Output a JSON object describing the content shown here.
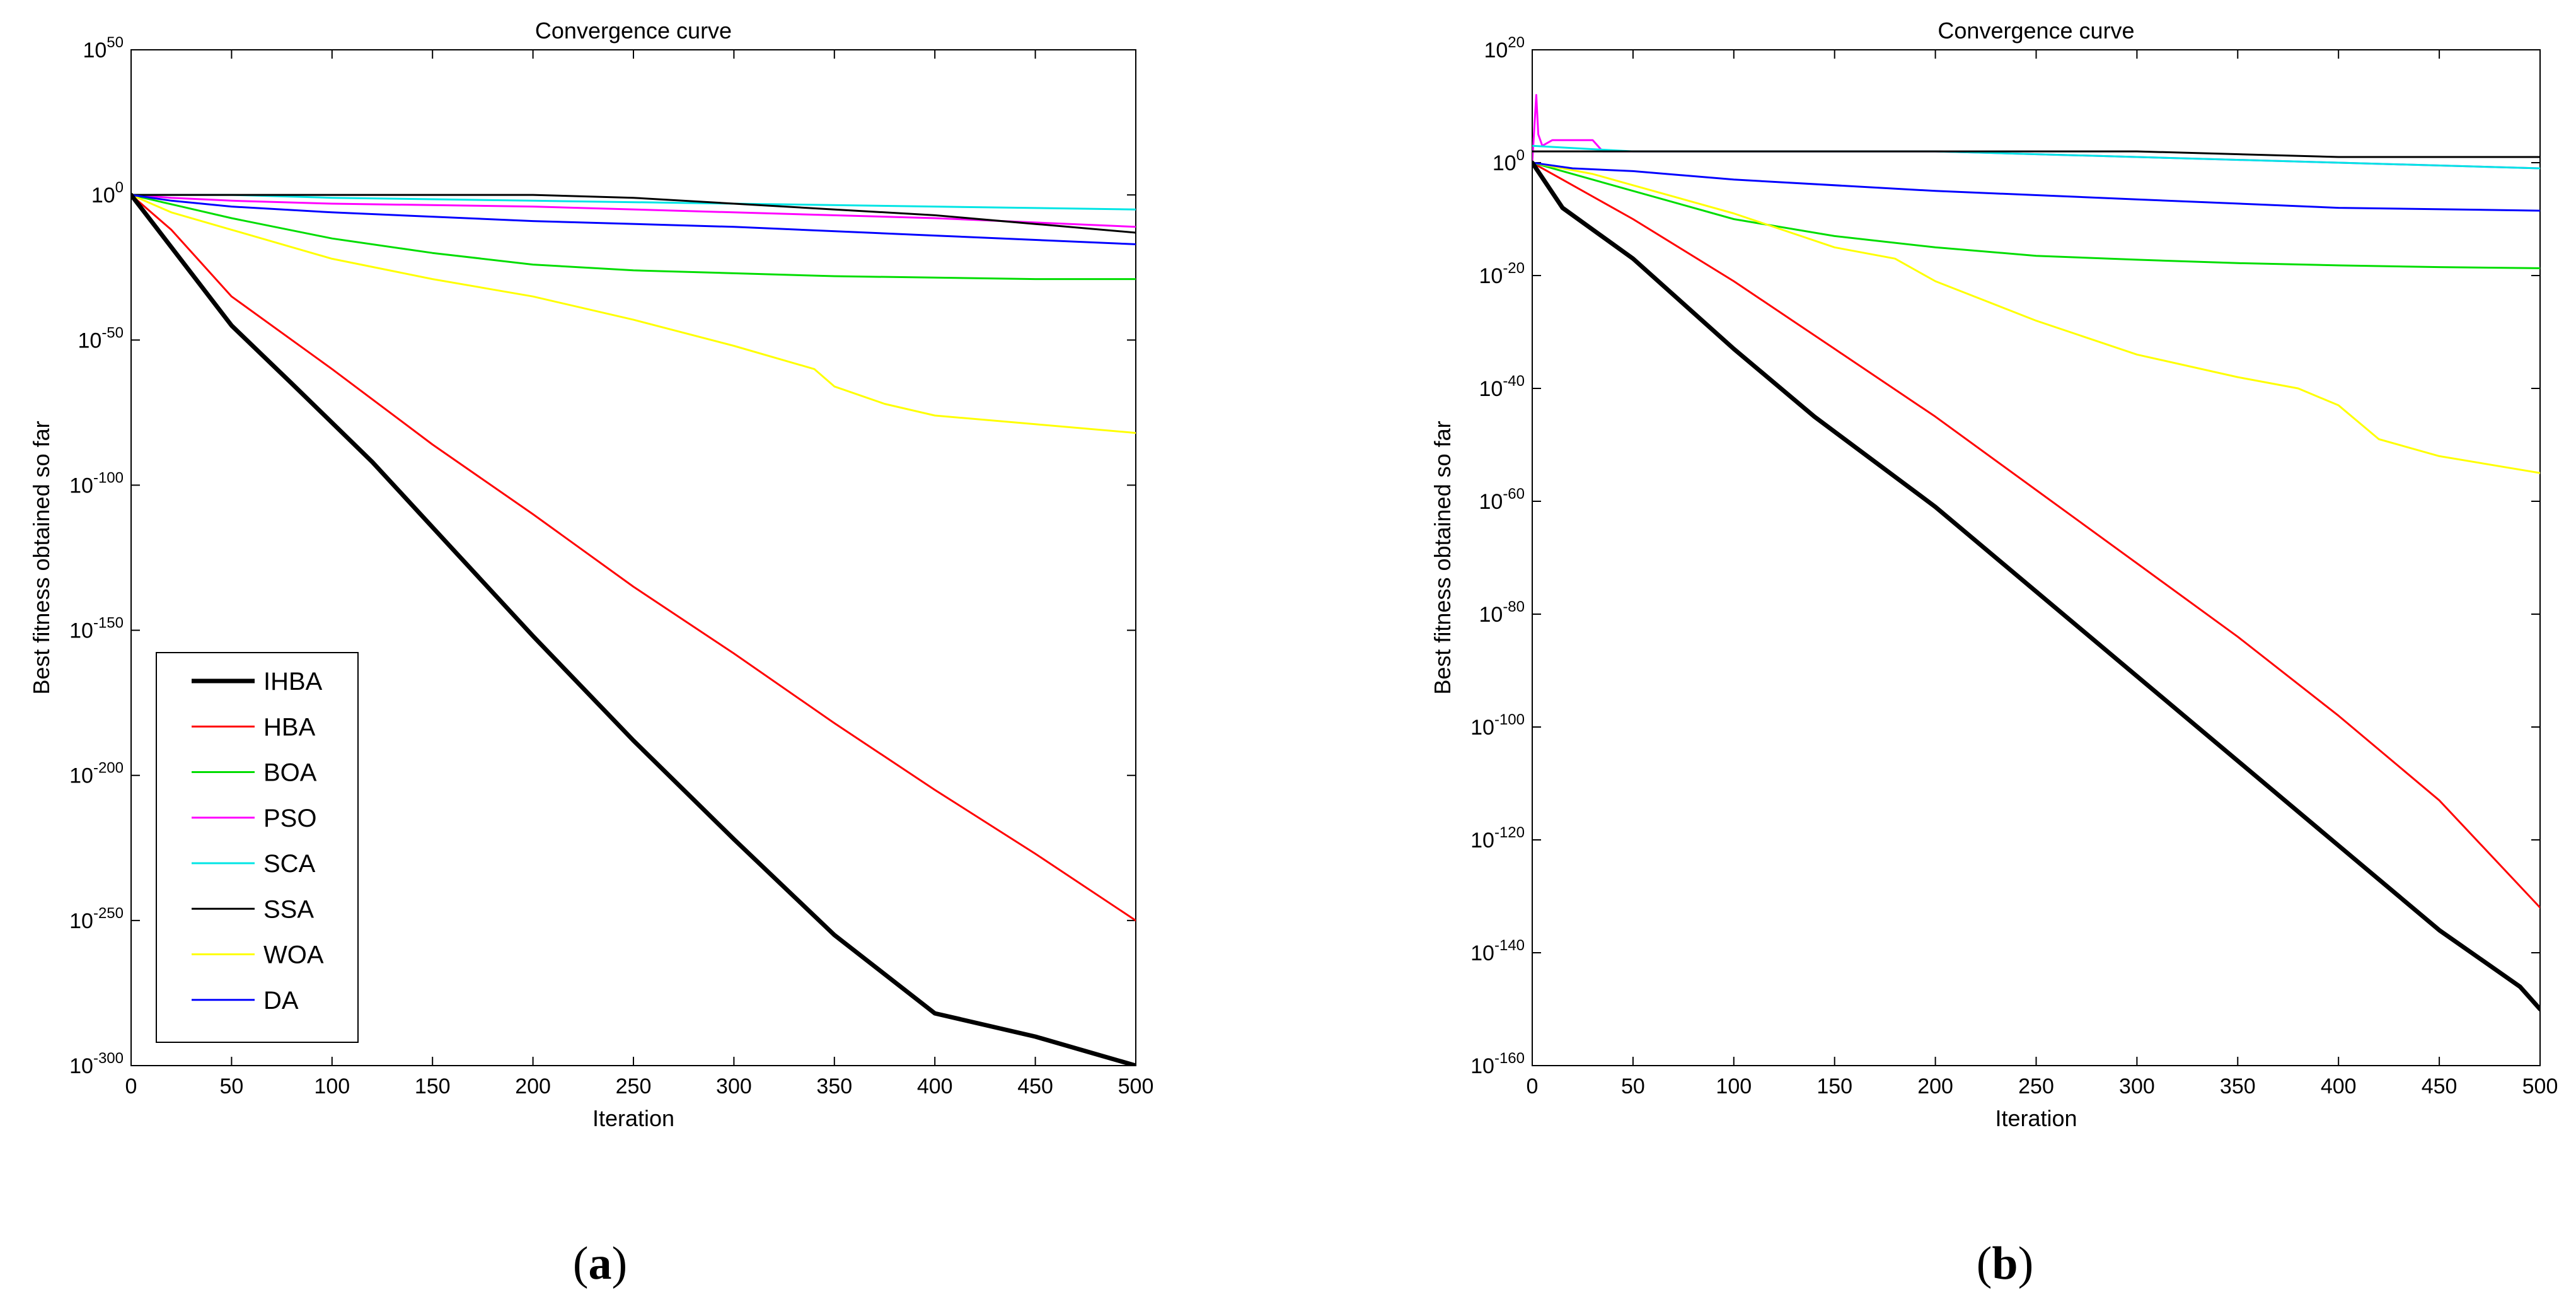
{
  "chart_data": [
    {
      "type": "line",
      "panel_label": "a",
      "title": "Convergence curve",
      "xlabel": "Iteration",
      "ylabel": "Best fitness obtained so far",
      "xlim": [
        0,
        500
      ],
      "xticks": [
        0,
        50,
        100,
        150,
        200,
        250,
        300,
        350,
        400,
        450,
        500
      ],
      "yscale": "log",
      "ylim_exp": [
        -300,
        50
      ],
      "ytick_exps": [
        50,
        0,
        -50,
        -100,
        -150,
        -200,
        -250,
        -300
      ],
      "ytick_labels": [
        "10^50",
        "10^0",
        "10^-50",
        "10^-100",
        "10^-150",
        "10^-200",
        "10^-250",
        "10^-300"
      ],
      "legend_position": "lower-left",
      "series": [
        {
          "name": "IHBA",
          "color": "#000000",
          "width": 7,
          "x": [
            0,
            20,
            50,
            80,
            120,
            160,
            200,
            250,
            300,
            350,
            400,
            450,
            480,
            500
          ],
          "log10_y": [
            0,
            -18,
            -45,
            -65,
            -92,
            -122,
            -152,
            -188,
            -222,
            -255,
            -282,
            -290,
            -296,
            -300
          ]
        },
        {
          "name": "HBA",
          "color": "#ff0000",
          "width": 3,
          "x": [
            0,
            20,
            50,
            100,
            150,
            200,
            250,
            300,
            350,
            400,
            450,
            500
          ],
          "log10_y": [
            0,
            -12,
            -35,
            -60,
            -86,
            -110,
            -135,
            -158,
            -182,
            -205,
            -227,
            -250
          ]
        },
        {
          "name": "BOA",
          "color": "#00dd00",
          "width": 3,
          "x": [
            0,
            25,
            50,
            100,
            150,
            200,
            250,
            300,
            350,
            400,
            450,
            500
          ],
          "log10_y": [
            0,
            -4,
            -8,
            -15,
            -20,
            -24,
            -26,
            -27,
            -28,
            -28.5,
            -29,
            -29
          ]
        },
        {
          "name": "PSO",
          "color": "#ff00ff",
          "width": 3,
          "x": [
            0,
            20,
            50,
            100,
            200,
            300,
            400,
            500
          ],
          "log10_y": [
            0,
            -1,
            -2,
            -3,
            -4,
            -6,
            -8,
            -11
          ]
        },
        {
          "name": "SCA",
          "color": "#00e5e5",
          "width": 3,
          "x": [
            0,
            20,
            50,
            100,
            200,
            300,
            400,
            500
          ],
          "log10_y": [
            0,
            0,
            0,
            -1,
            -2,
            -3,
            -4,
            -5
          ]
        },
        {
          "name": "SSA",
          "color": "#000000",
          "width": 3,
          "x": [
            0,
            20,
            100,
            200,
            250,
            300,
            350,
            400,
            450,
            500
          ],
          "log10_y": [
            0,
            0,
            0,
            0,
            -1,
            -3,
            -5,
            -7,
            -10,
            -13
          ]
        },
        {
          "name": "WOA",
          "color": "#ffff00",
          "width": 3,
          "x": [
            0,
            20,
            50,
            100,
            150,
            200,
            250,
            300,
            340,
            350,
            375,
            400,
            450,
            500
          ],
          "log10_y": [
            0,
            -6,
            -12,
            -22,
            -29,
            -35,
            -43,
            -52,
            -60,
            -66,
            -72,
            -76,
            -79,
            -82
          ]
        },
        {
          "name": "DA",
          "color": "#0000ff",
          "width": 3,
          "x": [
            0,
            20,
            50,
            100,
            200,
            300,
            400,
            500
          ],
          "log10_y": [
            0,
            -2,
            -4,
            -6,
            -9,
            -11,
            -14,
            -17
          ]
        }
      ]
    },
    {
      "type": "line",
      "panel_label": "b",
      "title": "Convergence curve",
      "xlabel": "Iteration",
      "ylabel": "Best fitness obtained so far",
      "xlim": [
        0,
        500
      ],
      "xticks": [
        0,
        50,
        100,
        150,
        200,
        250,
        300,
        350,
        400,
        450,
        500
      ],
      "yscale": "log",
      "ylim_exp": [
        -160,
        20
      ],
      "ytick_exps": [
        20,
        0,
        -20,
        -40,
        -60,
        -80,
        -100,
        -120,
        -140,
        -160
      ],
      "ytick_labels": [
        "10^20",
        "10^0",
        "10^-20",
        "10^-40",
        "10^-60",
        "10^-80",
        "10^-100",
        "10^-120",
        "10^-140",
        "10^-160"
      ],
      "series": [
        {
          "name": "IHBA",
          "color": "#000000",
          "width": 7,
          "x": [
            0,
            15,
            50,
            100,
            140,
            200,
            250,
            300,
            350,
            400,
            450,
            490,
            500
          ],
          "log10_y": [
            0,
            -8,
            -17,
            -33,
            -45,
            -61,
            -76,
            -91,
            -106,
            -121,
            -136,
            -146,
            -150
          ]
        },
        {
          "name": "HBA",
          "color": "#ff0000",
          "width": 3,
          "x": [
            0,
            15,
            50,
            100,
            150,
            200,
            250,
            300,
            350,
            400,
            450,
            500
          ],
          "log10_y": [
            0,
            -3,
            -10,
            -21,
            -33,
            -45,
            -58,
            -71,
            -84,
            -98,
            -113,
            -132
          ]
        },
        {
          "name": "BOA",
          "color": "#00dd00",
          "width": 3,
          "x": [
            0,
            50,
            100,
            150,
            200,
            250,
            300,
            350,
            400,
            450,
            500
          ],
          "log10_y": [
            0,
            -5,
            -10,
            -13,
            -15,
            -16.5,
            -17.2,
            -17.8,
            -18.2,
            -18.5,
            -18.7
          ]
        },
        {
          "name": "PSO",
          "color": "#ff00ff",
          "width": 3,
          "x": [
            0,
            2,
            3,
            5,
            10,
            30,
            35,
            100,
            200,
            300,
            400,
            500
          ],
          "log10_y": [
            0,
            12,
            5,
            3,
            4,
            4,
            2,
            2,
            2,
            1,
            0,
            -1
          ]
        },
        {
          "name": "SCA",
          "color": "#00e5e5",
          "width": 3,
          "x": [
            0,
            50,
            100,
            200,
            300,
            400,
            500
          ],
          "log10_y": [
            3,
            2,
            2,
            2,
            1,
            0,
            -1
          ]
        },
        {
          "name": "SSA",
          "color": "#000000",
          "width": 3,
          "x": [
            0,
            100,
            200,
            300,
            400,
            500
          ],
          "log10_y": [
            2,
            2,
            2,
            2,
            1,
            1
          ]
        },
        {
          "name": "WOA",
          "color": "#ffff00",
          "width": 3,
          "x": [
            0,
            30,
            50,
            100,
            150,
            180,
            200,
            250,
            300,
            350,
            380,
            400,
            420,
            450,
            500
          ],
          "log10_y": [
            0,
            -2,
            -4,
            -9,
            -15,
            -17,
            -21,
            -28,
            -34,
            -38,
            -40,
            -43,
            -49,
            -52,
            -55
          ]
        },
        {
          "name": "DA",
          "color": "#0000ff",
          "width": 3,
          "x": [
            0,
            20,
            50,
            100,
            200,
            300,
            400,
            500
          ],
          "log10_y": [
            0,
            -1,
            -1.5,
            -3,
            -5,
            -6.5,
            -8,
            -8.5
          ]
        }
      ]
    }
  ]
}
